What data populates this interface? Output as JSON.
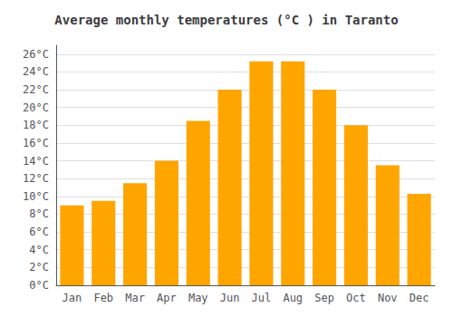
{
  "chart_data": {
    "type": "bar",
    "title": "Average monthly temperatures (°C ) in Taranto",
    "categories": [
      "Jan",
      "Feb",
      "Mar",
      "Apr",
      "May",
      "Jun",
      "Jul",
      "Aug",
      "Sep",
      "Oct",
      "Nov",
      "Dec"
    ],
    "values": [
      9.0,
      9.5,
      11.5,
      14.0,
      18.5,
      22.0,
      25.2,
      25.2,
      22.0,
      18.0,
      13.5,
      10.3
    ],
    "color": "#FFA500",
    "ylim": [
      0,
      27
    ],
    "yticks": [
      {
        "value": 0,
        "label": "0°C"
      },
      {
        "value": 2,
        "label": "2°C"
      },
      {
        "value": 4,
        "label": "4°C"
      },
      {
        "value": 6,
        "label": "6°C"
      },
      {
        "value": 8,
        "label": "8°C"
      },
      {
        "value": 10,
        "label": "10°C"
      },
      {
        "value": 12,
        "label": "12°C"
      },
      {
        "value": 14,
        "label": "14°C"
      },
      {
        "value": 16,
        "label": "16°C"
      },
      {
        "value": 18,
        "label": "18°C"
      },
      {
        "value": 20,
        "label": "20°C"
      },
      {
        "value": 22,
        "label": "22°C"
      },
      {
        "value": 24,
        "label": "24°C"
      },
      {
        "value": 26,
        "label": "26°C"
      }
    ],
    "grid": true
  }
}
